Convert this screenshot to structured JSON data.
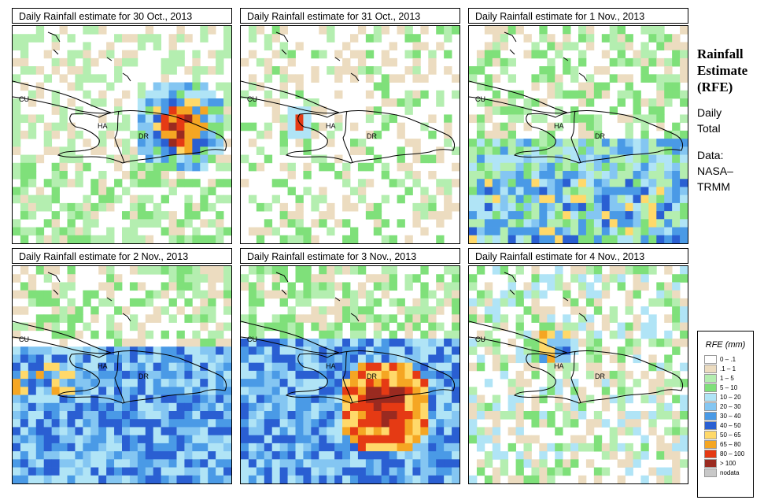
{
  "panels": [
    {
      "title": "Daily Rainfall estimate for  30 Oct., 2013",
      "labels": {
        "cu": "CU",
        "ha": "HA",
        "dr": "DR"
      }
    },
    {
      "title": "Daily Rainfall estimate for  31 Oct., 2013",
      "labels": {
        "cu": "CU",
        "ha": "HA",
        "dr": "DR"
      }
    },
    {
      "title": "Daily Rainfall estimate for  1 Nov., 2013",
      "labels": {
        "cu": "CU",
        "ha": "HA",
        "dr": "DR"
      }
    },
    {
      "title": "Daily Rainfall estimate for  2 Nov., 2013",
      "labels": {
        "cu": "CU",
        "ha": "HA",
        "dr": "DR"
      }
    },
    {
      "title": "Daily Rainfall estimate for  3 Nov., 2013",
      "labels": {
        "cu": "CU",
        "ha": "HA",
        "dr": "DR"
      }
    },
    {
      "title": "Daily Rainfall estimate for  4 Nov., 2013",
      "labels": {
        "cu": "CU",
        "ha": "HA",
        "dr": "DR"
      }
    }
  ],
  "side": {
    "heading": [
      "Rainfall",
      "Estimate",
      "(RFE)"
    ],
    "desc": [
      "Daily",
      "Total"
    ],
    "source": [
      "Data:",
      "NASA–",
      "TRMM"
    ]
  },
  "legend": {
    "title": "RFE (mm)",
    "items": [
      {
        "label": "0 – .1",
        "color": "#ffffff"
      },
      {
        "label": ".1 – 1",
        "color": "#ecdcc0"
      },
      {
        "label": "1 – 5",
        "color": "#b4eeb0"
      },
      {
        "label": "5 – 10",
        "color": "#7fe07a"
      },
      {
        "label": "10 – 20",
        "color": "#b0e4f6"
      },
      {
        "label": "20 – 30",
        "color": "#84c6f2"
      },
      {
        "label": "30 – 40",
        "color": "#4a9ae6"
      },
      {
        "label": "40 – 50",
        "color": "#2a5fd2"
      },
      {
        "label": "50 – 65",
        "color": "#ffd96a"
      },
      {
        "label": "65 – 80",
        "color": "#f5a623"
      },
      {
        "label": "80 – 100",
        "color": "#e53a14"
      },
      {
        "label": "> 100",
        "color": "#9a2a20"
      },
      {
        "label": "nodata",
        "color": "#c8c8c8"
      }
    ]
  }
}
